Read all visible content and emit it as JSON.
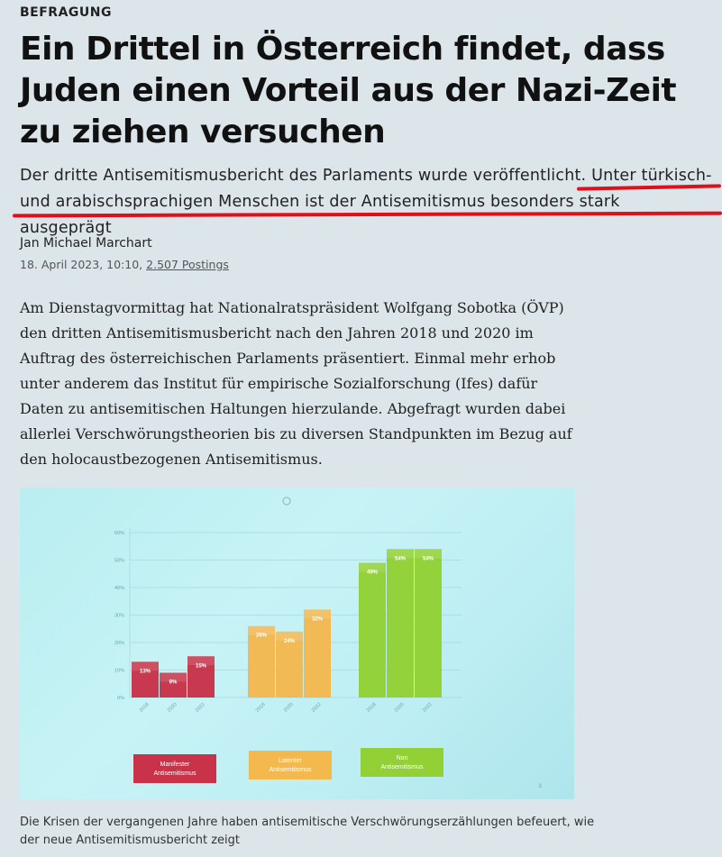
{
  "article": {
    "kicker": "BEFRAGUNG",
    "headline": "Ein Drittel in Österreich findet, dass Juden einen Vorteil aus der Nazi-Zeit zu ziehen versuchen",
    "lead_part1": "Der dritte Antisemitismusbericht des Parlaments wurde veröffentlicht.",
    "lead_part2": " Unter türkisch- und arabischsprachigen Menschen ist der Antisemitismus besonders stark ausgeprägt",
    "author": "Jan Michael Marchart",
    "date": "18. April 2023, 10:10,",
    "postings": "2.507 Postings",
    "body": "Am Dienstagvormittag hat Nationalratspräsident Wolfgang Sobotka (ÖVP) den dritten Antisemitismusbericht nach den Jahren 2018 und 2020 im Auftrag des österreichischen Parlaments präsentiert. Einmal mehr erhob unter anderem das Institut für empirische Sozialforschung (Ifes) dafür Daten zu antisemitischen Haltungen hierzulande. Abgefragt wurden dabei allerlei Verschwörungstheorien bis zu diversen Standpunkten im Bezug auf den holocaustbezogenen Antisemitismus.",
    "caption": "Die Krisen der vergangenen Jahre haben antisemitische Verschwörungserzählungen befeuert, wie der neue Antisemitismusbericht zeigt"
  },
  "colors": {
    "highlight": "#e0101a",
    "manifest": "#c8283f",
    "latent": "#f5b545",
    "non": "#8fcf2a"
  },
  "chart_data": {
    "type": "bar",
    "ylim": [
      0,
      60
    ],
    "yticks": [
      "0%",
      "10%",
      "20%",
      "30%",
      "40%",
      "50%",
      "60%"
    ],
    "groups": [
      {
        "name": "Manifester Antisemitismus",
        "color": "#c8283f",
        "categories": [
          "2018",
          "2020",
          "2022"
        ],
        "values": [
          13,
          9,
          15
        ],
        "labels": [
          "13%",
          "9%",
          "15%"
        ]
      },
      {
        "name": "Latenter Antisemitismus",
        "color": "#f5b545",
        "categories": [
          "2018",
          "2020",
          "2022"
        ],
        "values": [
          26,
          24,
          32
        ],
        "labels": [
          "26%",
          "24%",
          "32%"
        ]
      },
      {
        "name": "Non Antisemitismus",
        "color": "#8fcf2a",
        "categories": [
          "2018",
          "2020",
          "2022"
        ],
        "values": [
          49,
          54,
          54
        ],
        "labels": [
          "49%",
          "54%",
          "54%"
        ]
      }
    ],
    "legend_placement": "bottom",
    "page_number": "3"
  }
}
